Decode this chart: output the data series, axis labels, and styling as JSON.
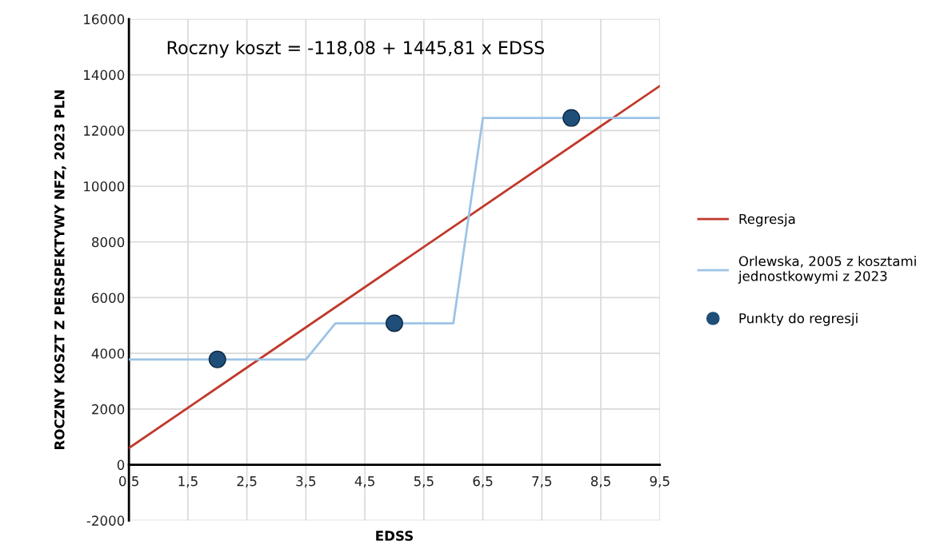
{
  "chart_data": {
    "type": "line",
    "xlabel": "EDSS",
    "ylabel": "ROCZNY KOSZT Z PERSPEKTYWY NFZ, 2023 PLN",
    "annotations": [
      "Roczny koszt = -118,08 + 1445,81 x EDSS"
    ],
    "series": [
      {
        "name": "Regresja",
        "color": "#c0392b",
        "marker": "none",
        "x": [
          0.5,
          9.5
        ],
        "values": [
          600,
          13600
        ]
      },
      {
        "name": "Orlewska, 2005 z kosztami jednostkowymi z 2023",
        "color": "#9dc3e6",
        "marker": "none",
        "x": [
          0.5,
          3.5,
          4,
          6,
          6.5,
          9.5
        ],
        "values": [
          3780,
          3780,
          5080,
          5080,
          12450,
          12450
        ]
      },
      {
        "name": "Punkty do regresji",
        "type": "scatter",
        "color": "#1f4e79",
        "marker": "circle",
        "x": [
          2,
          5,
          8
        ],
        "values": [
          3780,
          5080,
          12450
        ]
      }
    ],
    "xlim": [
      0.5,
      9.5
    ],
    "ylim": [
      -2000,
      16000
    ],
    "xticks": [
      {
        "value": 0.5,
        "label": "0,5"
      },
      {
        "value": 1.5,
        "label": "1,5"
      },
      {
        "value": 2.5,
        "label": "2,5"
      },
      {
        "value": 3.5,
        "label": "3,5"
      },
      {
        "value": 4.5,
        "label": "4,5"
      },
      {
        "value": 5.5,
        "label": "5,5"
      },
      {
        "value": 6.5,
        "label": "6,5"
      },
      {
        "value": 7.5,
        "label": "7,5"
      },
      {
        "value": 8.5,
        "label": "8,5"
      },
      {
        "value": 9.5,
        "label": "9,5"
      }
    ],
    "yticks": [
      -2000,
      0,
      2000,
      4000,
      6000,
      8000,
      10000,
      12000,
      14000,
      16000
    ],
    "grid": true,
    "legend": "right"
  }
}
